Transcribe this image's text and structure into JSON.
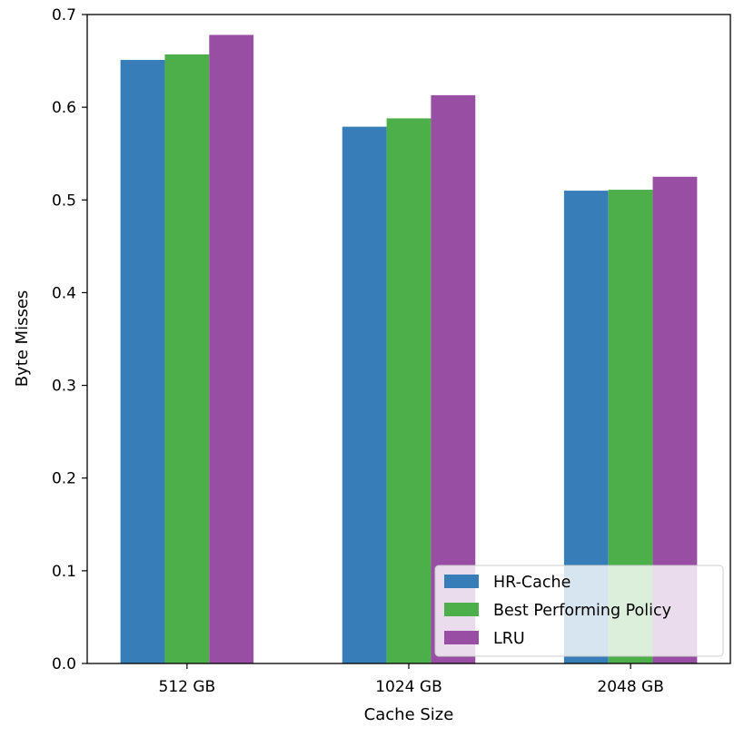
{
  "chart_data": {
    "type": "bar",
    "title": "",
    "xlabel": "Cache Size",
    "ylabel": "Byte Misses",
    "categories": [
      "512 GB",
      "1024 GB",
      "2048 GB"
    ],
    "series": [
      {
        "name": "HR-Cache",
        "color": "#377eb8",
        "values": [
          0.651,
          0.579,
          0.51
        ]
      },
      {
        "name": "Best Performing Policy",
        "color": "#4daf4a",
        "values": [
          0.657,
          0.588,
          0.511
        ]
      },
      {
        "name": "LRU",
        "color": "#984ea3",
        "values": [
          0.678,
          0.613,
          0.525
        ]
      }
    ],
    "ylim": [
      0,
      0.7
    ],
    "yticks": [
      0.0,
      0.1,
      0.2,
      0.3,
      0.4,
      0.5,
      0.6,
      0.7
    ],
    "ytick_labels": [
      "0.0",
      "0.1",
      "0.2",
      "0.3",
      "0.4",
      "0.5",
      "0.6",
      "0.7"
    ],
    "grid": false,
    "legend_position": "bottom-right"
  }
}
